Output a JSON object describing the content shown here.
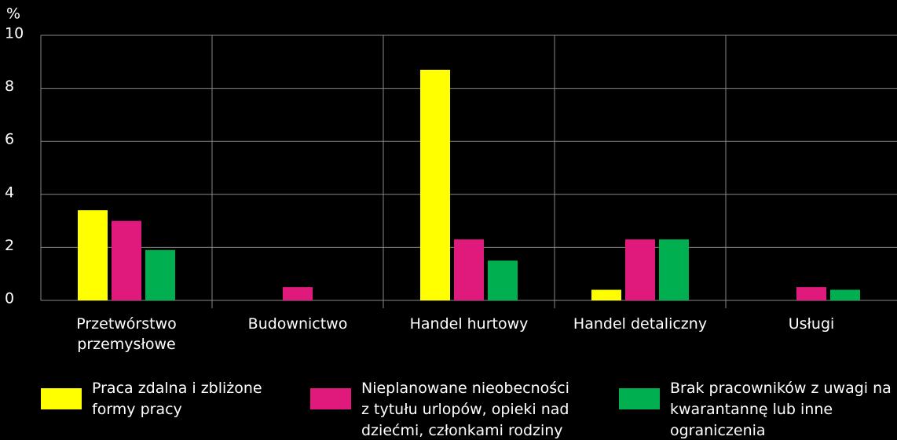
{
  "chart_data": {
    "type": "bar",
    "y_axis_label": "%",
    "categories": [
      "Przetwórstwo przemysłowe",
      "Budownictwo",
      "Handel hurtowy",
      "Handel detaliczny",
      "Usługi"
    ],
    "series": [
      {
        "name": "Praca zdalna i zbliżone formy pracy",
        "color": "#ffff00",
        "values": [
          3.4,
          0,
          8.7,
          0.4,
          0
        ]
      },
      {
        "name": "Nieplanowane nieobecności z tytułu urlopów, opieki nad dziećmi, członkami rodziny",
        "color": "#e0197d",
        "values": [
          3.0,
          0.5,
          2.3,
          2.3,
          0.5
        ]
      },
      {
        "name": "Brak pracowników z uwagi na kwarantannę lub inne ograniczenia",
        "color": "#00b050",
        "values": [
          1.9,
          0,
          1.5,
          2.3,
          0.4
        ]
      }
    ],
    "ylim": [
      0,
      10
    ],
    "yticks": [
      0,
      2,
      4,
      6,
      8,
      10
    ],
    "grid": true,
    "legend": "bottom"
  }
}
